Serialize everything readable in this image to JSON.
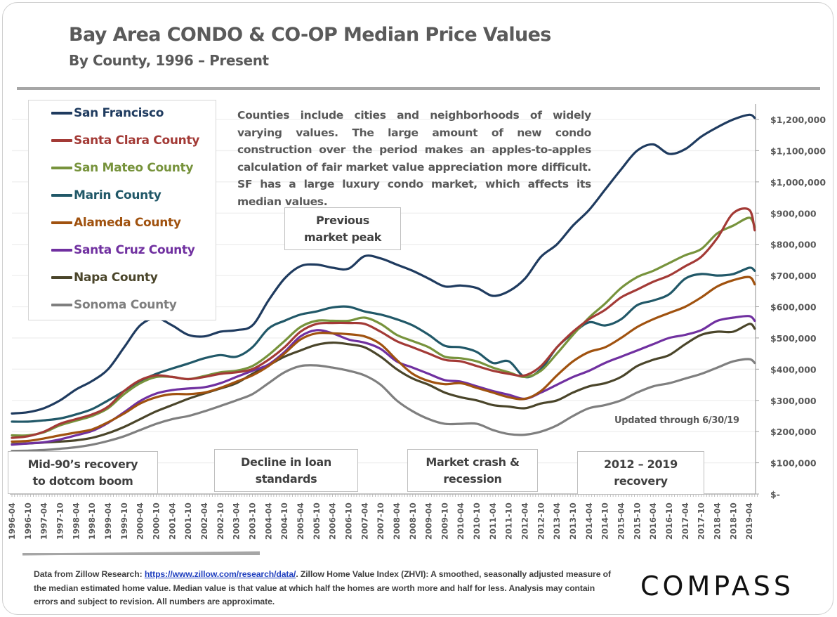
{
  "page": {
    "title": "Bay Area CONDO & CO-OP Median Price Values",
    "subtitle": "By County, 1996 – Present",
    "note": "Counties include cities and neighborhoods of widely varying values. The large amount of new condo construction over the period makes an apples-to-apples calculation of fair market value appreciation more difficult. SF has a large luxury condo market, which affects its median values.",
    "updated": "Updated through 6/30/19",
    "annotations": {
      "previous_peak": [
        "Previous",
        "market peak"
      ],
      "mid90s": [
        "Mid-90’s recovery",
        "to dotcom boom"
      ],
      "loan_decline": [
        "Decline in loan",
        "standards"
      ],
      "crash": [
        "Market crash &",
        "recession"
      ],
      "recovery": [
        "2012 – 2019",
        "recovery"
      ]
    },
    "footnote": {
      "prefix": "Data from Zillow Research",
      "colon": ": ",
      "link": "https://www.zillow.com/research/data/",
      "rest": ". Zillow Home Value Index (ZHVI): A smoothed, seasonally adjusted measure of the median estimated home value. Median value is that value at which half the homes are worth more and half for less. Analysis may contain errors and subject to revision. All numbers are approximate."
    },
    "logo": "COMPASS"
  },
  "chart_data": {
    "type": "line",
    "title": "Bay Area CONDO & CO-OP Median Price Values",
    "subtitle": "By County, 1996 – Present",
    "xlabel": "",
    "ylabel": "",
    "ylim": [
      0,
      1200000
    ],
    "y_ticks": [
      0,
      100000,
      200000,
      300000,
      400000,
      500000,
      600000,
      700000,
      800000,
      900000,
      1000000,
      1100000,
      1200000
    ],
    "y_tick_labels": [
      "$-",
      "$100,000",
      "$200,000",
      "$300,000",
      "$400,000",
      "$500,000",
      "$600,000",
      "$700,000",
      "$800,000",
      "$900,000",
      "$1,000,000",
      "$1,100,000",
      "$1,200,000"
    ],
    "y_axis_side": "right",
    "grid": true,
    "legend_position": "top-left",
    "x": [
      "1996-04",
      "1996-10",
      "1997-04",
      "1997-10",
      "1998-04",
      "1998-10",
      "1999-04",
      "1999-10",
      "2000-04",
      "2000-10",
      "2001-04",
      "2001-10",
      "2002-04",
      "2002-10",
      "2003-04",
      "2003-10",
      "2004-04",
      "2004-10",
      "2005-04",
      "2005-10",
      "2006-04",
      "2006-10",
      "2007-04",
      "2007-10",
      "2008-04",
      "2008-10",
      "2009-04",
      "2009-10",
      "2010-04",
      "2010-10",
      "2011-04",
      "2011-10",
      "2012-04",
      "2012-10",
      "2013-04",
      "2013-10",
      "2014-04",
      "2014-10",
      "2015-04",
      "2015-10",
      "2016-04",
      "2016-10",
      "2017-04",
      "2017-10",
      "2018-04",
      "2018-10",
      "2019-04",
      "2019-06"
    ],
    "x_tick_labels": [
      "1996-04",
      "1996-10",
      "1997-04",
      "1997-10",
      "1998-04",
      "1998-10",
      "1999-04",
      "1999-10",
      "2000-04",
      "2000-10",
      "2001-04",
      "2001-10",
      "2002-04",
      "2002-10",
      "2003-04",
      "2003-10",
      "2004-04",
      "2004-10",
      "2005-04",
      "2005-10",
      "2006-04",
      "2006-10",
      "2007-04",
      "2007-10",
      "2008-04",
      "2008-10",
      "2009-04",
      "2009-10",
      "2010-04",
      "2010-10",
      "2011-04",
      "2011-10",
      "2012-04",
      "2012-10",
      "2013-04",
      "2013-10",
      "2014-04",
      "2014-10",
      "2015-04",
      "2015-10",
      "2016-04",
      "2016-10",
      "2017-04",
      "2017-10",
      "2018-04",
      "2018-10",
      "2019-04"
    ],
    "series": [
      {
        "name": "San Francisco",
        "color": "#1f3b5f",
        "values": [
          258000,
          262000,
          275000,
          300000,
          335000,
          362000,
          400000,
          470000,
          540000,
          563000,
          540000,
          510000,
          505000,
          520000,
          525000,
          540000,
          620000,
          690000,
          730000,
          735000,
          725000,
          722000,
          762000,
          755000,
          735000,
          715000,
          690000,
          665000,
          668000,
          660000,
          635000,
          650000,
          690000,
          760000,
          800000,
          860000,
          910000,
          975000,
          1040000,
          1100000,
          1120000,
          1090000,
          1105000,
          1145000,
          1175000,
          1200000,
          1215000,
          1205000
        ]
      },
      {
        "name": "Santa Clara County",
        "color": "#a33a36",
        "values": [
          180000,
          185000,
          200000,
          225000,
          240000,
          255000,
          280000,
          330000,
          365000,
          380000,
          375000,
          368000,
          375000,
          385000,
          390000,
          400000,
          430000,
          470000,
          520000,
          545000,
          548000,
          548000,
          545000,
          520000,
          490000,
          470000,
          450000,
          430000,
          425000,
          410000,
          395000,
          385000,
          380000,
          410000,
          470000,
          520000,
          560000,
          590000,
          630000,
          655000,
          680000,
          700000,
          730000,
          760000,
          820000,
          900000,
          910000,
          845000
        ]
      },
      {
        "name": "San Mateo County",
        "color": "#77933c",
        "values": [
          188000,
          188000,
          198000,
          220000,
          235000,
          250000,
          275000,
          320000,
          355000,
          375000,
          375000,
          368000,
          378000,
          390000,
          395000,
          410000,
          445000,
          490000,
          535000,
          555000,
          555000,
          555000,
          565000,
          545000,
          510000,
          490000,
          470000,
          440000,
          435000,
          425000,
          405000,
          390000,
          375000,
          395000,
          450000,
          510000,
          565000,
          610000,
          660000,
          695000,
          715000,
          740000,
          765000,
          785000,
          835000,
          860000,
          885000,
          855000
        ]
      },
      {
        "name": "Marin County",
        "color": "#215868",
        "values": [
          232000,
          232000,
          236000,
          242000,
          255000,
          272000,
          300000,
          330000,
          362000,
          385000,
          402000,
          418000,
          435000,
          445000,
          440000,
          470000,
          530000,
          555000,
          575000,
          585000,
          598000,
          600000,
          585000,
          575000,
          560000,
          540000,
          510000,
          475000,
          470000,
          455000,
          420000,
          425000,
          375000,
          400000,
          470000,
          515000,
          550000,
          540000,
          560000,
          605000,
          620000,
          640000,
          690000,
          705000,
          700000,
          705000,
          725000,
          715000
        ]
      },
      {
        "name": "Alameda County",
        "color": "#a0520f",
        "values": [
          168000,
          170000,
          178000,
          188000,
          197000,
          207000,
          230000,
          258000,
          290000,
          310000,
          320000,
          320000,
          325000,
          340000,
          360000,
          380000,
          410000,
          450000,
          495000,
          515000,
          515000,
          512000,
          505000,
          480000,
          430000,
          385000,
          362000,
          352000,
          355000,
          340000,
          325000,
          310000,
          305000,
          330000,
          380000,
          425000,
          455000,
          470000,
          500000,
          535000,
          560000,
          580000,
          600000,
          630000,
          665000,
          685000,
          695000,
          672000
        ]
      },
      {
        "name": "Santa Cruz County",
        "color": "#7030a0",
        "values": [
          158000,
          162000,
          166000,
          175000,
          188000,
          202000,
          228000,
          262000,
          298000,
          322000,
          333000,
          338000,
          342000,
          355000,
          375000,
          395000,
          415000,
          455000,
          505000,
          525000,
          515000,
          495000,
          485000,
          465000,
          425000,
          405000,
          385000,
          365000,
          360000,
          345000,
          330000,
          318000,
          305000,
          325000,
          350000,
          375000,
          395000,
          420000,
          440000,
          460000,
          480000,
          500000,
          510000,
          525000,
          555000,
          565000,
          570000,
          555000
        ]
      },
      {
        "name": "Napa County",
        "color": "#4a452a",
        "values": [
          160000,
          162000,
          165000,
          168000,
          172000,
          180000,
          195000,
          215000,
          240000,
          265000,
          285000,
          305000,
          322000,
          338000,
          355000,
          385000,
          412000,
          440000,
          460000,
          478000,
          485000,
          480000,
          470000,
          440000,
          400000,
          370000,
          350000,
          325000,
          310000,
          300000,
          285000,
          280000,
          275000,
          290000,
          300000,
          325000,
          345000,
          355000,
          375000,
          410000,
          430000,
          445000,
          480000,
          510000,
          520000,
          520000,
          545000,
          530000
        ]
      },
      {
        "name": "Sonoma County",
        "color": "#7f7f7f",
        "values": [
          138000,
          139000,
          141000,
          145000,
          150000,
          158000,
          170000,
          185000,
          205000,
          225000,
          240000,
          250000,
          265000,
          282000,
          300000,
          320000,
          355000,
          390000,
          410000,
          412000,
          405000,
          395000,
          380000,
          350000,
          300000,
          265000,
          240000,
          225000,
          225000,
          225000,
          205000,
          192000,
          190000,
          200000,
          220000,
          250000,
          275000,
          285000,
          300000,
          325000,
          345000,
          355000,
          370000,
          385000,
          405000,
          425000,
          432000,
          420000
        ]
      }
    ]
  }
}
